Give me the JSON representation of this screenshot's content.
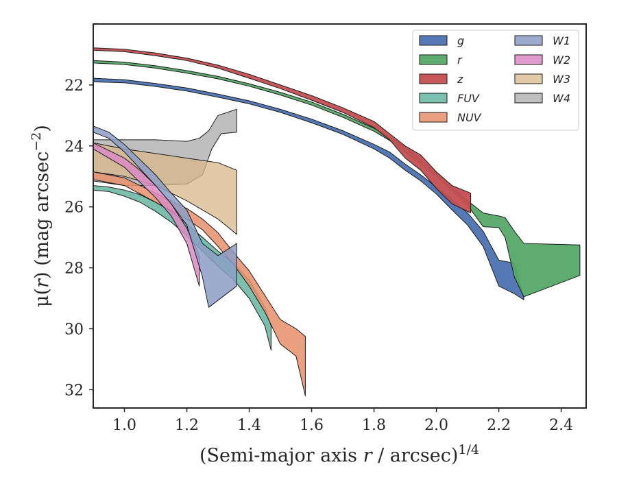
{
  "chart_data": {
    "type": "area",
    "xlabel": {
      "main": "(Semi-major axis ",
      "italic": "r",
      "rest": " / arcsec)",
      "sup": "1/4"
    },
    "ylabel": {
      "main": "μ(",
      "italic": "r",
      "rest": ") (mag arcsec",
      "sup": "−2",
      "close": ")"
    },
    "xlim": [
      0.9,
      2.48
    ],
    "ylim": [
      32.6,
      20.0
    ],
    "y_inverted": true,
    "xticks": [
      1.0,
      1.2,
      1.4,
      1.6,
      1.8,
      2.0,
      2.2,
      2.4
    ],
    "xtick_labels": [
      "1.0",
      "1.2",
      "1.4",
      "1.6",
      "1.8",
      "2.0",
      "2.2",
      "2.4"
    ],
    "yticks": [
      22,
      24,
      26,
      28,
      30,
      32
    ],
    "ytick_labels": [
      "22",
      "24",
      "26",
      "28",
      "30",
      "32"
    ],
    "grid": false,
    "legend_position": "top-right",
    "series": [
      {
        "name": "g",
        "color": "#4c72b0",
        "alpha": 0.95,
        "upper": [
          [
            0.9,
            21.78
          ],
          [
            1.0,
            21.83
          ],
          [
            1.1,
            21.95
          ],
          [
            1.2,
            22.1
          ],
          [
            1.3,
            22.3
          ],
          [
            1.4,
            22.52
          ],
          [
            1.5,
            22.8
          ],
          [
            1.6,
            23.12
          ],
          [
            1.7,
            23.5
          ],
          [
            1.8,
            23.95
          ],
          [
            1.85,
            24.2
          ],
          [
            1.9,
            24.6
          ],
          [
            1.95,
            24.95
          ],
          [
            2.0,
            25.35
          ],
          [
            2.05,
            25.75
          ],
          [
            2.1,
            26.2
          ],
          [
            2.15,
            26.8
          ],
          [
            2.2,
            27.75
          ],
          [
            2.25,
            27.85
          ],
          [
            2.28,
            28.95
          ]
        ],
        "lower": [
          [
            0.9,
            21.9
          ],
          [
            1.0,
            21.93
          ],
          [
            1.1,
            22.05
          ],
          [
            1.2,
            22.2
          ],
          [
            1.3,
            22.4
          ],
          [
            1.4,
            22.62
          ],
          [
            1.5,
            22.9
          ],
          [
            1.6,
            23.24
          ],
          [
            1.7,
            23.62
          ],
          [
            1.8,
            24.1
          ],
          [
            1.85,
            24.4
          ],
          [
            1.9,
            24.8
          ],
          [
            1.95,
            25.15
          ],
          [
            2.0,
            25.58
          ],
          [
            2.05,
            26.1
          ],
          [
            2.1,
            26.6
          ],
          [
            2.15,
            27.3
          ],
          [
            2.2,
            28.6
          ],
          [
            2.25,
            28.85
          ],
          [
            2.28,
            29.05
          ]
        ]
      },
      {
        "name": "r",
        "color": "#55a868",
        "alpha": 0.95,
        "upper": [
          [
            0.9,
            21.2
          ],
          [
            1.0,
            21.25
          ],
          [
            1.1,
            21.37
          ],
          [
            1.2,
            21.53
          ],
          [
            1.3,
            21.72
          ],
          [
            1.4,
            21.96
          ],
          [
            1.5,
            22.24
          ],
          [
            1.6,
            22.56
          ],
          [
            1.7,
            22.96
          ],
          [
            1.8,
            23.42
          ],
          [
            1.85,
            23.7
          ],
          [
            1.9,
            24.05
          ],
          [
            1.95,
            24.45
          ],
          [
            2.0,
            24.88
          ],
          [
            2.05,
            25.3
          ],
          [
            2.1,
            25.8
          ],
          [
            2.15,
            26.2
          ],
          [
            2.2,
            26.3
          ],
          [
            2.22,
            26.35
          ],
          [
            2.25,
            26.8
          ],
          [
            2.28,
            27.2
          ],
          [
            2.46,
            27.25
          ]
        ],
        "lower": [
          [
            0.9,
            21.28
          ],
          [
            1.0,
            21.33
          ],
          [
            1.1,
            21.45
          ],
          [
            1.2,
            21.61
          ],
          [
            1.3,
            21.8
          ],
          [
            1.4,
            22.04
          ],
          [
            1.5,
            22.33
          ],
          [
            1.6,
            22.66
          ],
          [
            1.7,
            23.06
          ],
          [
            1.8,
            23.52
          ],
          [
            1.85,
            23.82
          ],
          [
            1.9,
            24.2
          ],
          [
            1.95,
            24.6
          ],
          [
            2.0,
            25.0
          ],
          [
            2.05,
            25.45
          ],
          [
            2.1,
            25.95
          ],
          [
            2.15,
            26.65
          ],
          [
            2.2,
            26.68
          ],
          [
            2.22,
            27.0
          ],
          [
            2.25,
            28.3
          ],
          [
            2.28,
            28.95
          ],
          [
            2.46,
            28.25
          ]
        ]
      },
      {
        "name": "z",
        "color": "#c44e52",
        "alpha": 0.95,
        "upper": [
          [
            0.9,
            20.78
          ],
          [
            1.0,
            20.83
          ],
          [
            1.1,
            20.95
          ],
          [
            1.2,
            21.12
          ],
          [
            1.3,
            21.35
          ],
          [
            1.4,
            21.65
          ],
          [
            1.5,
            22.0
          ],
          [
            1.6,
            22.35
          ],
          [
            1.7,
            22.75
          ],
          [
            1.8,
            23.2
          ],
          [
            1.85,
            23.6
          ],
          [
            1.9,
            24.0
          ],
          [
            1.95,
            24.3
          ],
          [
            2.0,
            24.85
          ],
          [
            2.05,
            25.3
          ],
          [
            2.11,
            25.55
          ]
        ],
        "lower": [
          [
            0.9,
            20.86
          ],
          [
            1.0,
            20.91
          ],
          [
            1.1,
            21.04
          ],
          [
            1.2,
            21.2
          ],
          [
            1.3,
            21.45
          ],
          [
            1.4,
            21.78
          ],
          [
            1.5,
            22.12
          ],
          [
            1.6,
            22.5
          ],
          [
            1.7,
            22.9
          ],
          [
            1.8,
            23.4
          ],
          [
            1.85,
            23.8
          ],
          [
            1.9,
            24.4
          ],
          [
            1.95,
            24.8
          ],
          [
            2.0,
            25.4
          ],
          [
            2.05,
            25.9
          ],
          [
            2.11,
            26.2
          ]
        ]
      },
      {
        "name": "FUV",
        "color": "#64b5a0",
        "alpha": 0.85,
        "upper": [
          [
            0.9,
            25.3
          ],
          [
            0.95,
            25.35
          ],
          [
            1.0,
            25.45
          ],
          [
            1.05,
            25.6
          ],
          [
            1.1,
            25.85
          ],
          [
            1.15,
            26.15
          ],
          [
            1.2,
            26.55
          ],
          [
            1.25,
            27.0
          ],
          [
            1.3,
            27.45
          ],
          [
            1.35,
            27.85
          ],
          [
            1.4,
            28.4
          ],
          [
            1.45,
            29.3
          ],
          [
            1.47,
            29.9
          ]
        ],
        "lower": [
          [
            0.9,
            25.45
          ],
          [
            0.95,
            25.5
          ],
          [
            1.0,
            25.65
          ],
          [
            1.05,
            25.85
          ],
          [
            1.1,
            26.15
          ],
          [
            1.15,
            26.5
          ],
          [
            1.2,
            26.95
          ],
          [
            1.25,
            27.45
          ],
          [
            1.3,
            27.95
          ],
          [
            1.35,
            28.4
          ],
          [
            1.4,
            29.0
          ],
          [
            1.45,
            29.9
          ],
          [
            1.47,
            30.7
          ]
        ]
      },
      {
        "name": "NUV",
        "color": "#e8916b",
        "alpha": 0.85,
        "upper": [
          [
            0.9,
            24.85
          ],
          [
            1.0,
            25.05
          ],
          [
            1.1,
            25.55
          ],
          [
            1.2,
            26.05
          ],
          [
            1.25,
            26.4
          ],
          [
            1.3,
            26.85
          ],
          [
            1.35,
            27.5
          ],
          [
            1.4,
            28.1
          ],
          [
            1.45,
            28.9
          ],
          [
            1.5,
            29.7
          ],
          [
            1.55,
            30.0
          ],
          [
            1.58,
            30.25
          ]
        ],
        "lower": [
          [
            0.9,
            25.1
          ],
          [
            1.0,
            25.3
          ],
          [
            1.1,
            25.85
          ],
          [
            1.2,
            26.4
          ],
          [
            1.25,
            26.75
          ],
          [
            1.3,
            27.3
          ],
          [
            1.35,
            27.9
          ],
          [
            1.4,
            28.6
          ],
          [
            1.45,
            29.45
          ],
          [
            1.5,
            30.5
          ],
          [
            1.55,
            30.9
          ],
          [
            1.58,
            32.2
          ]
        ]
      },
      {
        "name": "W1",
        "color": "#8c9ec6",
        "alpha": 0.85,
        "upper": [
          [
            0.9,
            23.35
          ],
          [
            0.95,
            23.55
          ],
          [
            1.0,
            23.95
          ],
          [
            1.05,
            24.45
          ],
          [
            1.1,
            24.95
          ],
          [
            1.15,
            25.55
          ],
          [
            1.2,
            26.1
          ],
          [
            1.25,
            27.2
          ],
          [
            1.3,
            27.6
          ],
          [
            1.36,
            27.2
          ]
        ],
        "lower": [
          [
            0.9,
            23.55
          ],
          [
            0.95,
            23.75
          ],
          [
            1.0,
            24.2
          ],
          [
            1.05,
            24.75
          ],
          [
            1.1,
            25.3
          ],
          [
            1.15,
            25.9
          ],
          [
            1.2,
            26.6
          ],
          [
            1.25,
            28.3
          ],
          [
            1.27,
            29.3
          ],
          [
            1.36,
            28.6
          ]
        ]
      },
      {
        "name": "W2",
        "color": "#da8bc3",
        "alpha": 0.85,
        "upper": [
          [
            0.9,
            23.9
          ],
          [
            1.0,
            24.4
          ],
          [
            1.05,
            24.8
          ],
          [
            1.1,
            25.3
          ],
          [
            1.15,
            25.9
          ],
          [
            1.2,
            26.7
          ],
          [
            1.24,
            27.6
          ]
        ],
        "lower": [
          [
            0.9,
            24.1
          ],
          [
            1.0,
            24.7
          ],
          [
            1.05,
            25.2
          ],
          [
            1.1,
            25.7
          ],
          [
            1.15,
            26.3
          ],
          [
            1.2,
            27.2
          ],
          [
            1.24,
            28.6
          ]
        ]
      },
      {
        "name": "W3",
        "color": "#d8b78a",
        "alpha": 0.75,
        "upper": [
          [
            0.9,
            23.9
          ],
          [
            1.0,
            24.1
          ],
          [
            1.1,
            24.25
          ],
          [
            1.2,
            24.4
          ],
          [
            1.3,
            24.55
          ],
          [
            1.36,
            24.8
          ]
        ],
        "lower": [
          [
            0.9,
            24.85
          ],
          [
            1.0,
            25.0
          ],
          [
            1.1,
            25.3
          ],
          [
            1.2,
            25.8
          ],
          [
            1.3,
            26.4
          ],
          [
            1.36,
            26.9
          ]
        ]
      },
      {
        "name": "W4",
        "color": "#a9a9a9",
        "alpha": 0.75,
        "upper": [
          [
            0.9,
            23.8
          ],
          [
            1.0,
            23.8
          ],
          [
            1.1,
            23.8
          ],
          [
            1.2,
            23.85
          ],
          [
            1.24,
            23.75
          ],
          [
            1.27,
            23.5
          ],
          [
            1.3,
            23.0
          ],
          [
            1.36,
            22.8
          ]
        ],
        "lower": [
          [
            0.9,
            25.15
          ],
          [
            1.0,
            25.3
          ],
          [
            1.1,
            25.3
          ],
          [
            1.2,
            25.25
          ],
          [
            1.25,
            24.95
          ],
          [
            1.28,
            24.1
          ],
          [
            1.31,
            23.6
          ],
          [
            1.36,
            23.55
          ]
        ]
      }
    ]
  }
}
